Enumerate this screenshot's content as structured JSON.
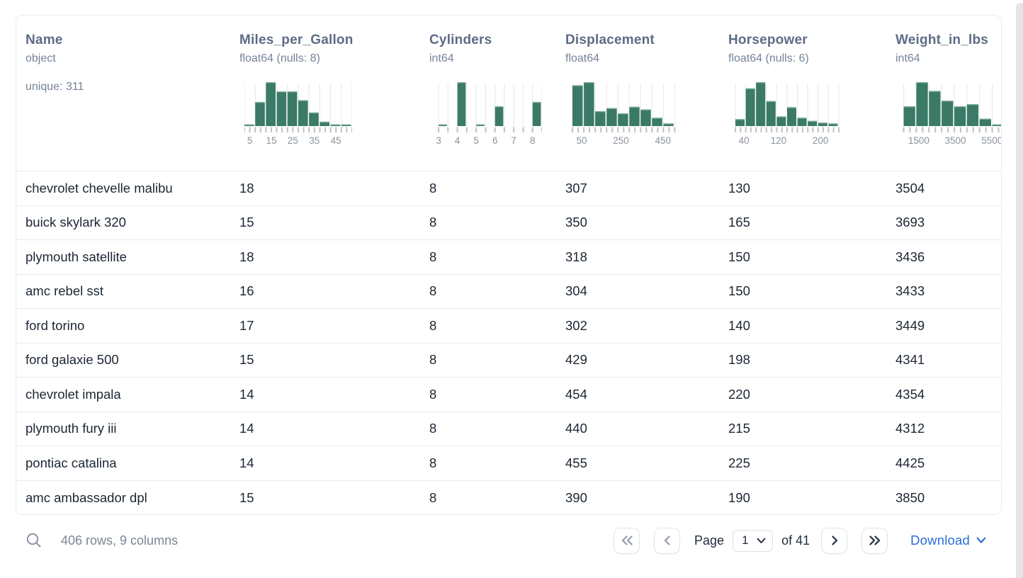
{
  "colors": {
    "hist_bar": "#3a7a67",
    "hist_bar_top": "#8fb9aa",
    "hist_grid": "#ececec",
    "hist_tick": "#c3c6cb",
    "hist_label": "#8b939e",
    "link_blue": "#2b6ddd",
    "header_text": "#5d6c85",
    "muted_text": "#76839a",
    "cell_text": "#1c2633",
    "icon_enabled": "#232e3f",
    "icon_disabled": "#949ba8"
  },
  "table": {
    "columns": [
      {
        "name": "Name",
        "dtype": "object",
        "extra": "unique: 311",
        "histogram": null
      },
      {
        "name": "Miles_per_Gallon",
        "dtype": "float64 (nulls: 8)",
        "histogram": {
          "type": "histogram",
          "bar_w": 0.1,
          "bars": [
            {
              "x": 0.0,
              "h": 0.04
            },
            {
              "x": 0.1,
              "h": 0.55
            },
            {
              "x": 0.2,
              "h": 1.0
            },
            {
              "x": 0.3,
              "h": 0.79
            },
            {
              "x": 0.4,
              "h": 0.79
            },
            {
              "x": 0.5,
              "h": 0.59
            },
            {
              "x": 0.6,
              "h": 0.31
            },
            {
              "x": 0.7,
              "h": 0.1
            },
            {
              "x": 0.8,
              "h": 0.03
            },
            {
              "x": 0.9,
              "h": 0.03
            }
          ],
          "ticks": {
            "from": 0.0,
            "to": 1.0,
            "count": 21,
            "grid_every": 2
          },
          "labels": [
            {
              "p": 0.05,
              "t": "5"
            },
            {
              "p": 0.25,
              "t": "15"
            },
            {
              "p": 0.45,
              "t": "25"
            },
            {
              "p": 0.65,
              "t": "35"
            },
            {
              "p": 0.85,
              "t": "45"
            }
          ]
        }
      },
      {
        "name": "Cylinders",
        "dtype": "int64",
        "histogram": {
          "type": "histogram",
          "bar_w": 0.0873,
          "bars": [
            {
              "x": 0.04,
              "h": 0.035
            },
            {
              "x": 0.215,
              "h": 1.0
            },
            {
              "x": 0.389,
              "h": 0.04
            },
            {
              "x": 0.564,
              "h": 0.45
            },
            {
              "x": 0.913,
              "h": 0.55
            }
          ],
          "ticks": {
            "from": 0.04,
            "to": 1.0,
            "count": 12,
            "grid_every": 1
          },
          "labels": [
            {
              "p": 0.04,
              "t": "3"
            },
            {
              "p": 0.215,
              "t": "4"
            },
            {
              "p": 0.389,
              "t": "5"
            },
            {
              "p": 0.564,
              "t": "6"
            },
            {
              "p": 0.738,
              "t": "7"
            },
            {
              "p": 0.913,
              "t": "8"
            }
          ]
        }
      },
      {
        "name": "Displacement",
        "dtype": "float64",
        "histogram": {
          "type": "histogram",
          "bar_w": 0.1055,
          "bars": [
            {
              "x": 0.02,
              "h": 0.93
            },
            {
              "x": 0.126,
              "h": 1.0
            },
            {
              "x": 0.231,
              "h": 0.34
            },
            {
              "x": 0.337,
              "h": 0.41
            },
            {
              "x": 0.442,
              "h": 0.29
            },
            {
              "x": 0.548,
              "h": 0.44
            },
            {
              "x": 0.653,
              "h": 0.38
            },
            {
              "x": 0.759,
              "h": 0.19
            },
            {
              "x": 0.864,
              "h": 0.06
            }
          ],
          "ticks": {
            "from": 0.02,
            "to": 0.97,
            "count": 19,
            "grid_every": 2
          },
          "labels": [
            {
              "p": 0.105,
              "t": "50"
            },
            {
              "p": 0.47,
              "t": "250"
            },
            {
              "p": 0.86,
              "t": "450"
            }
          ]
        }
      },
      {
        "name": "Horsepower",
        "dtype": "float64 (nulls: 6)",
        "histogram": {
          "type": "histogram",
          "bar_w": 0.096,
          "bars": [
            {
              "x": 0.02,
              "h": 0.16
            },
            {
              "x": 0.116,
              "h": 0.86
            },
            {
              "x": 0.212,
              "h": 1.0
            },
            {
              "x": 0.308,
              "h": 0.57
            },
            {
              "x": 0.404,
              "h": 0.22
            },
            {
              "x": 0.5,
              "h": 0.43
            },
            {
              "x": 0.596,
              "h": 0.19
            },
            {
              "x": 0.692,
              "h": 0.12
            },
            {
              "x": 0.788,
              "h": 0.08
            },
            {
              "x": 0.884,
              "h": 0.06
            }
          ],
          "ticks": {
            "from": 0.02,
            "to": 0.98,
            "count": 21,
            "grid_every": 2
          },
          "labels": [
            {
              "p": 0.1,
              "t": "40"
            },
            {
              "p": 0.42,
              "t": "120"
            },
            {
              "p": 0.81,
              "t": "200"
            }
          ]
        }
      },
      {
        "name": "Weight_in_lbs",
        "dtype": "int64",
        "histogram": {
          "type": "histogram",
          "bar_w": 0.1175,
          "bars": [
            {
              "x": 0.03,
              "h": 0.45
            },
            {
              "x": 0.1475,
              "h": 1.0
            },
            {
              "x": 0.265,
              "h": 0.8
            },
            {
              "x": 0.3825,
              "h": 0.58
            },
            {
              "x": 0.5,
              "h": 0.45
            },
            {
              "x": 0.6175,
              "h": 0.5
            },
            {
              "x": 0.735,
              "h": 0.17
            },
            {
              "x": 0.8525,
              "h": 0.04
            }
          ],
          "ticks": {
            "from": 0.03,
            "to": 0.97,
            "count": 17,
            "grid_every": 2
          },
          "labels": [
            {
              "p": 0.17,
              "t": "1500"
            },
            {
              "p": 0.51,
              "t": "3500"
            },
            {
              "p": 0.85,
              "t": "5500"
            }
          ]
        }
      }
    ],
    "rows": [
      [
        "chevrolet chevelle malibu",
        "18",
        "8",
        "307",
        "130",
        "3504"
      ],
      [
        "buick skylark 320",
        "15",
        "8",
        "350",
        "165",
        "3693"
      ],
      [
        "plymouth satellite",
        "18",
        "8",
        "318",
        "150",
        "3436"
      ],
      [
        "amc rebel sst",
        "16",
        "8",
        "304",
        "150",
        "3433"
      ],
      [
        "ford torino",
        "17",
        "8",
        "302",
        "140",
        "3449"
      ],
      [
        "ford galaxie 500",
        "15",
        "8",
        "429",
        "198",
        "4341"
      ],
      [
        "chevrolet impala",
        "14",
        "8",
        "454",
        "220",
        "4354"
      ],
      [
        "plymouth fury iii",
        "14",
        "8",
        "440",
        "215",
        "4312"
      ],
      [
        "pontiac catalina",
        "14",
        "8",
        "455",
        "225",
        "4425"
      ],
      [
        "amc ambassador dpl",
        "15",
        "8",
        "390",
        "190",
        "3850"
      ]
    ]
  },
  "footer": {
    "status": "406 rows, 9 columns",
    "pagination": {
      "page_label": "Page",
      "page_value": "1",
      "total_label": "of 41",
      "buttons": [
        {
          "name": "first-page-button",
          "icon": "chevrons-left",
          "enabled": false
        },
        {
          "name": "prev-page-button",
          "icon": "chevron-left",
          "enabled": false
        },
        {
          "name": "next-page-button",
          "icon": "chevron-right",
          "enabled": true
        },
        {
          "name": "last-page-button",
          "icon": "chevrons-right",
          "enabled": true
        }
      ]
    },
    "download_label": "Download"
  }
}
